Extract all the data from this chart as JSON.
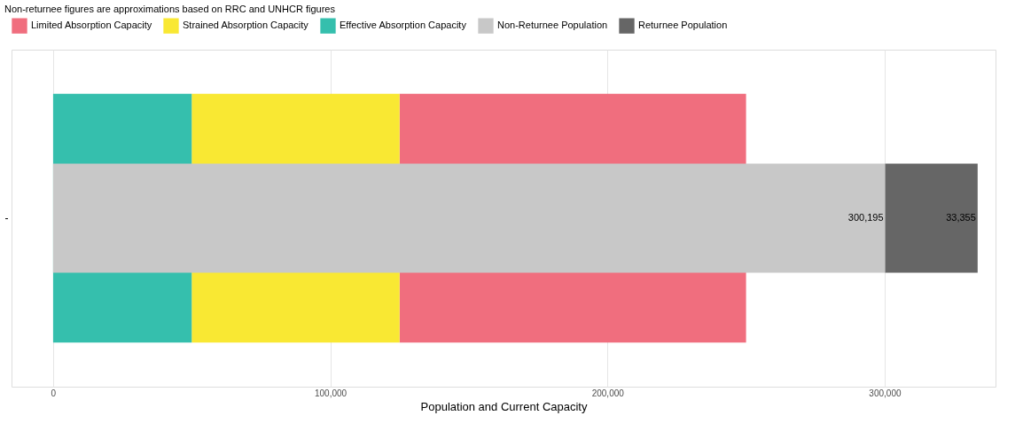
{
  "chart_data": {
    "type": "bar",
    "orientation": "horizontal",
    "title": "Non-returnee figures are approximations based on RRC and UNHCR figures",
    "xlabel": "Population and Current Capacity",
    "categories": [
      "-"
    ],
    "series": [
      {
        "name": "Limited Absorption Capacity",
        "color": "#f06e7e",
        "values": [
          125000
        ],
        "base": [
          125000
        ]
      },
      {
        "name": "Strained Absorption Capacity",
        "color": "#f9e833",
        "values": [
          75000
        ],
        "base": [
          50000
        ]
      },
      {
        "name": "Effective Absorption Capacity",
        "color": "#35bfad",
        "values": [
          50000
        ],
        "base": [
          0
        ]
      },
      {
        "name": "Non-Returnee Population",
        "color": "#c8c8c8",
        "values": [
          300195
        ],
        "base": [
          0
        ],
        "value_labels": [
          "300,195"
        ]
      },
      {
        "name": "Returnee Population",
        "color": "#666666",
        "values": [
          33355
        ],
        "base": [
          300195
        ],
        "value_labels": [
          "33,355"
        ]
      }
    ],
    "xlim": [
      -15000,
      340000
    ],
    "xticks": [
      0,
      {
        "value": 100000,
        "label": "100,000"
      },
      {
        "value": 200000,
        "label": "200,000"
      },
      {
        "value": 300000,
        "label": "300,000"
      }
    ],
    "grid": "x",
    "legend": "top left"
  }
}
